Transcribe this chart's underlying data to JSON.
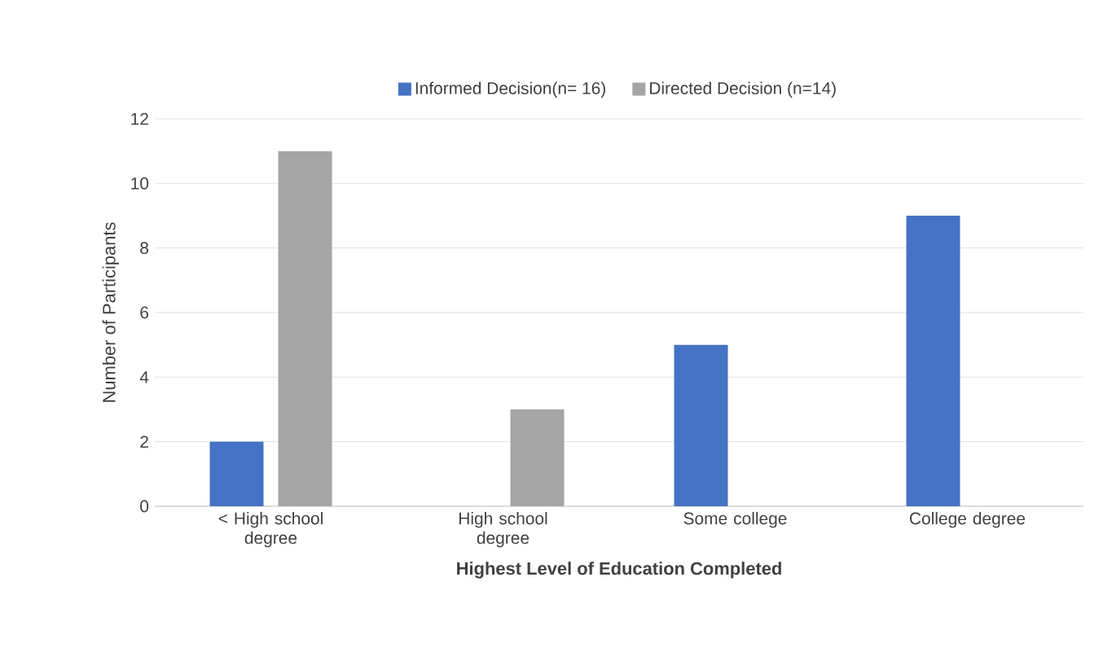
{
  "chart_data": {
    "type": "bar",
    "xlabel": "Highest Level of Education Completed",
    "ylabel": "Number of Participants",
    "categories": [
      "< High school degree",
      "High school degree",
      "Some college",
      "College degree"
    ],
    "series": [
      {
        "name": "Informed Decision(n= 16)",
        "color": "#4472c4",
        "values": [
          2,
          0,
          5,
          9
        ]
      },
      {
        "name": "Directed Decision (n=14)",
        "color": "#a5a5a5",
        "values": [
          11,
          3,
          0,
          0
        ]
      }
    ],
    "ylim": [
      0,
      12
    ],
    "yticks": [
      0,
      2,
      4,
      6,
      8,
      10,
      12
    ],
    "grid": "y",
    "legend": "top"
  }
}
